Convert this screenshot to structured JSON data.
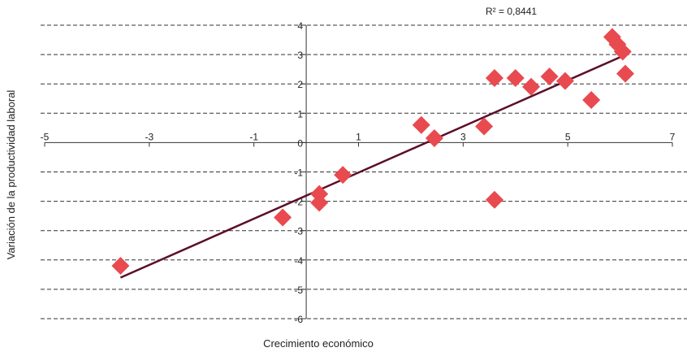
{
  "chart_data": {
    "type": "scatter",
    "title": "",
    "xlabel": "Crecimiento económico",
    "ylabel": "Variación de la productividad laboral",
    "annotation": "R² = 0,8441",
    "xlim": [
      -5,
      7
    ],
    "ylim": [
      -6,
      4
    ],
    "x_ticks": [
      -5,
      -3,
      -1,
      1,
      3,
      5,
      7
    ],
    "y_ticks": [
      4,
      3,
      2,
      1,
      0,
      -1,
      -2,
      -3,
      -4,
      -5,
      -6
    ],
    "grid": "horizontal dashed",
    "marker_color": "#e84a4f",
    "line_color": "#5a0f2a",
    "points": [
      {
        "x": -3.55,
        "y": -4.2
      },
      {
        "x": -0.45,
        "y": -2.55
      },
      {
        "x": 0.25,
        "y": -1.75
      },
      {
        "x": 0.25,
        "y": -2.05
      },
      {
        "x": 0.7,
        "y": -1.1
      },
      {
        "x": 2.2,
        "y": 0.6
      },
      {
        "x": 2.45,
        "y": 0.15
      },
      {
        "x": 3.4,
        "y": 0.55
      },
      {
        "x": 3.6,
        "y": 2.2
      },
      {
        "x": 3.6,
        "y": -1.95
      },
      {
        "x": 4.0,
        "y": 2.2
      },
      {
        "x": 4.3,
        "y": 1.9
      },
      {
        "x": 4.65,
        "y": 2.25
      },
      {
        "x": 4.95,
        "y": 2.1
      },
      {
        "x": 5.45,
        "y": 1.45
      },
      {
        "x": 5.85,
        "y": 3.6
      },
      {
        "x": 5.95,
        "y": 3.35
      },
      {
        "x": 6.05,
        "y": 3.1
      },
      {
        "x": 6.1,
        "y": 2.35
      }
    ],
    "trendline": {
      "x1": -3.55,
      "y1": -4.6,
      "x2": 6.05,
      "y2": 2.95
    }
  }
}
